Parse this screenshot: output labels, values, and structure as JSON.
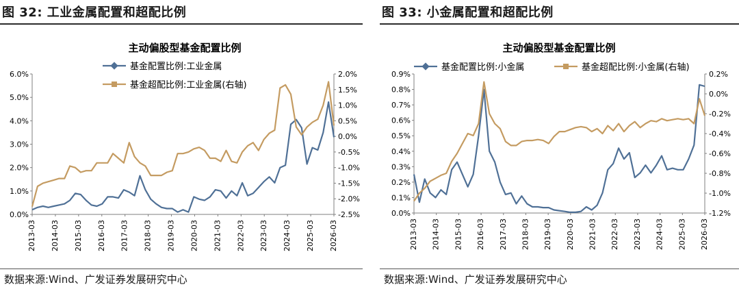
{
  "colors": {
    "blue": "#4f7096",
    "gold": "#c49b61",
    "axis": "#7f7f7f"
  },
  "chart_data": [
    {
      "type": "line",
      "figure_title": "图 32:  工业金属配置和超配比例",
      "title": "主动偏股型基金配置比例",
      "source": "数据来源:Wind、广发证券发展研究中心",
      "x_tick_labels": [
        "2013-03",
        "2014-03",
        "2015-03",
        "2016-03",
        "2017-03",
        "2018-03",
        "2019-03",
        "2020-03",
        "2021-03",
        "2022-03",
        "2023-03",
        "2024-03",
        "2025-03",
        "2026-03"
      ],
      "y_left": {
        "min": 0,
        "max": 6,
        "ticks": [
          "0.0%",
          "1.0%",
          "2.0%",
          "3.0%",
          "4.0%",
          "5.0%",
          "6.0%"
        ]
      },
      "y_right": {
        "min": -2.5,
        "max": 2.0,
        "ticks": [
          "-2.5%",
          "-2.0%",
          "-1.5%",
          "-1.0%",
          "-0.5%",
          "0.0%",
          "0.5%",
          "1.0%",
          "1.5%",
          "2.0%"
        ]
      },
      "series": [
        {
          "name": "基金配置比例:工业金属",
          "axis": "left",
          "color": "blue",
          "unit": "%",
          "values": [
            0.2,
            0.3,
            0.35,
            0.3,
            0.35,
            0.4,
            0.45,
            0.6,
            0.9,
            0.85,
            0.6,
            0.4,
            0.35,
            0.45,
            0.75,
            0.75,
            0.7,
            1.05,
            0.95,
            0.8,
            1.65,
            1.05,
            0.65,
            0.45,
            0.3,
            0.25,
            0.25,
            0.1,
            0.2,
            0.1,
            0.75,
            0.65,
            0.6,
            0.75,
            1.05,
            1.0,
            0.7,
            1.0,
            0.8,
            1.35,
            0.8,
            0.9,
            1.15,
            1.4,
            1.6,
            1.35,
            2.0,
            2.1,
            3.85,
            4.05,
            3.7,
            2.15,
            2.85,
            2.75,
            3.5,
            4.8,
            3.3
          ]
        },
        {
          "name": "基金超配比例:工业金属(右轴)",
          "axis": "right",
          "color": "gold",
          "unit": "%",
          "values": [
            -2.25,
            -1.6,
            -1.5,
            -1.45,
            -1.4,
            -1.35,
            -1.35,
            -0.95,
            -1.0,
            -1.15,
            -1.1,
            -1.1,
            -0.85,
            -0.85,
            -0.85,
            -0.55,
            -0.7,
            -0.85,
            -0.2,
            -0.65,
            -0.85,
            -0.95,
            -1.25,
            -1.25,
            -1.25,
            -1.15,
            -1.1,
            -0.55,
            -0.55,
            -0.5,
            -0.4,
            -0.35,
            -0.45,
            -0.7,
            -0.7,
            -0.8,
            -0.45,
            -0.8,
            -0.85,
            -0.5,
            -0.3,
            -0.2,
            -0.45,
            -0.1,
            0.1,
            0.2,
            1.55,
            1.65,
            1.35,
            0.3,
            0.05,
            0.3,
            0.45,
            0.55,
            1.0,
            1.75,
            0.35
          ]
        }
      ]
    },
    {
      "type": "line",
      "figure_title": "图 33:  小金属配置和超配比例",
      "title": "主动偏股型基金配置比例",
      "source": "数据来源:Wind、广发证券发展研究中心",
      "x_tick_labels": [
        "2013-03",
        "2014-03",
        "2015-03",
        "2016-03",
        "2017-03",
        "2018-03",
        "2019-03",
        "2020-03",
        "2021-03",
        "2022-03",
        "2023-03",
        "2024-03",
        "2025-03",
        "2026-03"
      ],
      "y_left": {
        "min": 0,
        "max": 0.9,
        "ticks": [
          "0.0%",
          "0.1%",
          "0.2%",
          "0.3%",
          "0.4%",
          "0.5%",
          "0.6%",
          "0.7%",
          "0.8%",
          "0.9%"
        ]
      },
      "y_right": {
        "min": -1.2,
        "max": 0.2,
        "ticks": [
          "-1.2%",
          "-1.0%",
          "-0.8%",
          "-0.6%",
          "-0.4%",
          "-0.2%",
          "0.0%",
          "0.2%"
        ]
      },
      "series": [
        {
          "name": "基金配置比例:小金属",
          "axis": "left",
          "color": "blue",
          "unit": "%",
          "values": [
            0.25,
            0.07,
            0.22,
            0.13,
            0.1,
            0.15,
            0.12,
            0.28,
            0.33,
            0.25,
            0.17,
            0.25,
            0.5,
            0.8,
            0.4,
            0.33,
            0.2,
            0.12,
            0.13,
            0.06,
            0.11,
            0.06,
            0.04,
            0.04,
            0.035,
            0.035,
            0.02,
            0.015,
            0.01,
            0.005,
            0.005,
            0.01,
            0.04,
            0.02,
            0.05,
            0.13,
            0.28,
            0.32,
            0.42,
            0.35,
            0.39,
            0.23,
            0.26,
            0.31,
            0.26,
            0.31,
            0.37,
            0.28,
            0.29,
            0.28,
            0.28,
            0.35,
            0.44,
            0.83,
            0.82
          ]
        },
        {
          "name": "基金超配比例:小金属(右轴)",
          "axis": "right",
          "color": "gold",
          "unit": "%",
          "values": [
            -1.08,
            -1.0,
            -0.95,
            -0.88,
            -0.85,
            -0.82,
            -0.8,
            -0.68,
            -0.6,
            -0.5,
            -0.4,
            -0.42,
            -0.3,
            0.12,
            -0.2,
            -0.3,
            -0.35,
            -0.48,
            -0.52,
            -0.52,
            -0.48,
            -0.47,
            -0.47,
            -0.46,
            -0.47,
            -0.5,
            -0.43,
            -0.38,
            -0.38,
            -0.36,
            -0.34,
            -0.33,
            -0.34,
            -0.38,
            -0.35,
            -0.4,
            -0.32,
            -0.37,
            -0.3,
            -0.38,
            -0.32,
            -0.28,
            -0.34,
            -0.3,
            -0.27,
            -0.28,
            -0.25,
            -0.27,
            -0.26,
            -0.25,
            -0.26,
            -0.25,
            -0.3,
            -0.05,
            -0.22
          ]
        }
      ]
    }
  ]
}
